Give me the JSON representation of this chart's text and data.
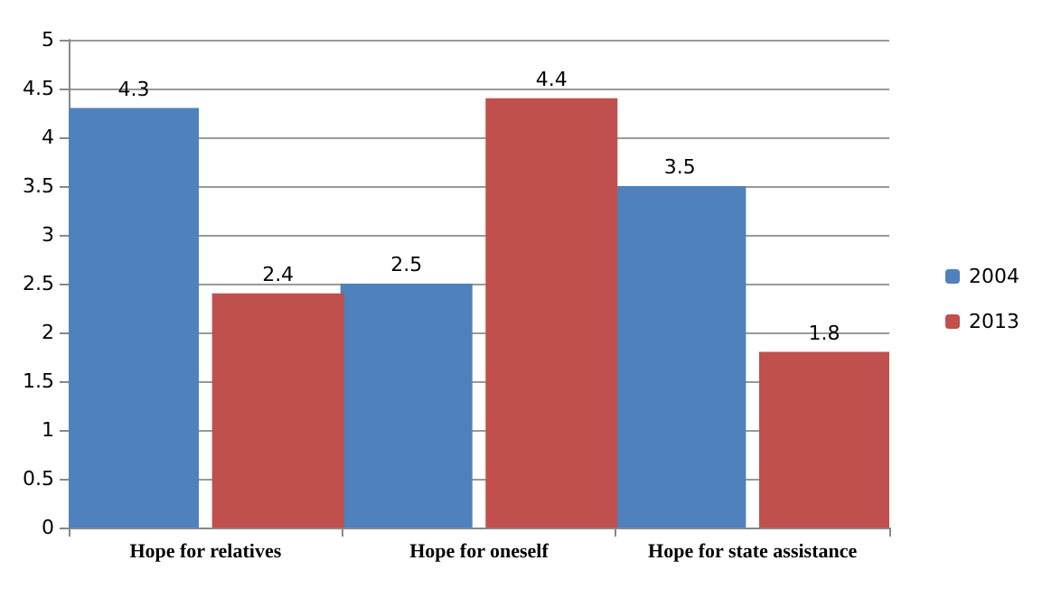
{
  "chart_data": {
    "type": "bar",
    "categories": [
      "Hope for relatives",
      "Hope for oneself",
      "Hope for state assistance"
    ],
    "series": [
      {
        "name": "2004",
        "color": "#4f81bd",
        "values": [
          4.3,
          2.5,
          3.5
        ]
      },
      {
        "name": "2013",
        "color": "#c0504d",
        "values": [
          2.4,
          4.4,
          1.8
        ]
      }
    ],
    "ylim": [
      0,
      5
    ],
    "yticks": [
      0,
      0.5,
      1,
      1.5,
      2,
      2.5,
      3,
      3.5,
      4,
      4.5,
      5
    ],
    "grid": "y",
    "legend": "right",
    "data_labels": true
  }
}
